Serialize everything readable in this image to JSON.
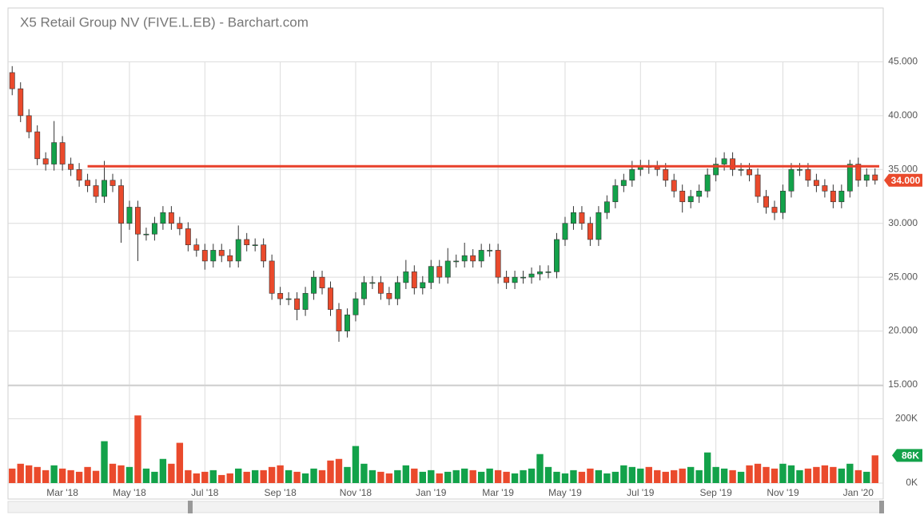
{
  "chart_data": {
    "type": "candlestick",
    "title": "X5 Retail Group NV (FIVE.L.EB) - Barchart.com",
    "categories": [
      null,
      null,
      null,
      null,
      null,
      null,
      "Mar '18",
      null,
      null,
      null,
      null,
      null,
      null,
      null,
      "May '18",
      null,
      null,
      null,
      null,
      null,
      null,
      null,
      null,
      "Jul '18",
      null,
      null,
      null,
      null,
      null,
      null,
      null,
      null,
      "Sep '18",
      null,
      null,
      null,
      null,
      null,
      null,
      null,
      null,
      "Nov '18",
      null,
      null,
      null,
      null,
      null,
      null,
      null,
      null,
      "Jan '19",
      null,
      null,
      null,
      null,
      null,
      null,
      null,
      "Mar '19",
      null,
      null,
      null,
      null,
      null,
      null,
      null,
      "May '19",
      null,
      null,
      null,
      null,
      null,
      null,
      null,
      null,
      "Jul '19",
      null,
      null,
      null,
      null,
      null,
      null,
      null,
      null,
      "Sep '19",
      null,
      null,
      null,
      null,
      null,
      null,
      null,
      "Nov '19",
      null,
      null,
      null,
      null,
      null,
      null,
      null,
      null,
      "Jan '20",
      null,
      null
    ],
    "open": [
      44,
      42.5,
      40,
      38.5,
      36,
      35.5,
      37.5,
      35.5,
      35,
      34,
      33.5,
      32.5,
      34,
      33.5,
      30,
      31.5,
      29,
      29,
      30,
      31,
      30,
      29.5,
      28,
      27.5,
      26.5,
      27.5,
      27,
      26.5,
      28.5,
      28,
      28,
      26.5,
      23.5,
      23,
      23,
      22,
      23.5,
      25,
      24,
      22,
      20,
      21.5,
      23,
      24.5,
      24.5,
      23.5,
      23,
      24.5,
      25.5,
      24,
      24.5,
      26,
      25,
      26.5,
      26.5,
      27,
      26.5,
      27.5,
      27.5,
      25,
      24.5,
      25,
      25,
      25.3,
      25.5,
      25.5,
      28.5,
      30,
      31,
      30,
      28.5,
      31,
      32,
      33.5,
      34,
      35,
      35.3,
      35.2,
      35,
      34,
      33,
      32,
      32.5,
      33,
      34.5,
      35.5,
      36,
      35,
      35,
      34.5,
      32.5,
      31.5,
      31,
      33,
      35,
      35,
      34,
      33.5,
      33,
      32,
      33,
      35.5,
      34,
      34.5
    ],
    "high": [
      44.6,
      43.1,
      40.6,
      39.1,
      36.6,
      39.5,
      38.1,
      36.1,
      35.6,
      34.6,
      34.1,
      35.8,
      34.6,
      34.1,
      32.1,
      32.1,
      29.6,
      30.6,
      31.6,
      31.6,
      30.6,
      30.1,
      28.6,
      28.1,
      28.1,
      28.1,
      27.6,
      29.8,
      29.1,
      28.6,
      28.6,
      27.1,
      24.1,
      23.6,
      23.6,
      24.1,
      25.6,
      25.6,
      24.6,
      22.6,
      22.1,
      23.6,
      25.1,
      25.1,
      25.1,
      24.1,
      25.1,
      26.6,
      26.1,
      25.1,
      26.6,
      26.6,
      27.7,
      27.1,
      28.2,
      27.6,
      28.1,
      28.1,
      28.1,
      25.6,
      25.6,
      25.6,
      25.9,
      26.1,
      26.1,
      29.1,
      30.6,
      31.6,
      31.6,
      30.6,
      31.6,
      32.6,
      34.1,
      34.6,
      35.8,
      35.9,
      35.9,
      35.8,
      35.6,
      34.6,
      33.6,
      33.1,
      33.6,
      35.1,
      36.1,
      36.6,
      36.6,
      35.6,
      35.6,
      35.1,
      33.1,
      32.1,
      33.6,
      35.6,
      35.6,
      35.6,
      34.6,
      34.1,
      33.6,
      33.6,
      35.9,
      36.1,
      35.1,
      35.1
    ],
    "low": [
      41.9,
      39.4,
      37.9,
      35.4,
      34.9,
      34.9,
      34.9,
      34.4,
      33.4,
      32.9,
      31.9,
      31.9,
      32.9,
      28.2,
      29.4,
      26.5,
      28.4,
      28.4,
      29.4,
      29.4,
      28.9,
      27.4,
      26.9,
      25.7,
      25.9,
      26.4,
      25.9,
      25.9,
      27.4,
      27.4,
      25.9,
      22.9,
      22.4,
      22.4,
      21,
      21.4,
      22.9,
      23.4,
      21.4,
      19,
      19.4,
      20.9,
      22.4,
      23.9,
      22.9,
      22.4,
      22.4,
      23.9,
      23.4,
      23.4,
      23.9,
      24.4,
      24.4,
      25.9,
      25.9,
      25.9,
      25.9,
      26.9,
      24.4,
      23.9,
      23.9,
      24.4,
      24.4,
      24.7,
      24.9,
      24.9,
      27.9,
      29.4,
      29.4,
      27.9,
      27.9,
      30.4,
      31.4,
      32.9,
      33.4,
      34.4,
      34.6,
      34.4,
      33.4,
      32.4,
      31,
      31.4,
      31.9,
      32.4,
      33.9,
      34.9,
      34.4,
      34.4,
      33.9,
      31.9,
      30.9,
      30.3,
      30.4,
      32.4,
      34.4,
      33.4,
      32.9,
      32.4,
      31.4,
      31.4,
      32.4,
      33.4,
      33.4,
      33.6
    ],
    "close": [
      42.5,
      40,
      38.5,
      36,
      35.5,
      37.5,
      35.5,
      35,
      34,
      33.5,
      32.5,
      34,
      33.5,
      30,
      31.5,
      29,
      29,
      30,
      31,
      30,
      29.5,
      28,
      27.5,
      26.5,
      27.5,
      27,
      26.5,
      28.5,
      28,
      28,
      26.5,
      23.5,
      23,
      23,
      22,
      23.5,
      25,
      24,
      22,
      20,
      21.5,
      23,
      24.5,
      24.5,
      23.5,
      23,
      24.5,
      25.5,
      24,
      24.5,
      26,
      25,
      26.5,
      26.5,
      27,
      26.5,
      27.5,
      27.5,
      25,
      24.5,
      25,
      25,
      25.3,
      25.5,
      25.5,
      28.5,
      30,
      31,
      30,
      28.5,
      31,
      32,
      33.5,
      34,
      35,
      35.3,
      35.2,
      35,
      34,
      33,
      32,
      32.5,
      33,
      34.5,
      35.5,
      36,
      35,
      35,
      34.5,
      32.5,
      31.5,
      31,
      33,
      35,
      35,
      34,
      33.5,
      33,
      32,
      33,
      35.5,
      34,
      34.5,
      34
    ],
    "volume": [
      45000,
      60000,
      55000,
      50000,
      40000,
      55000,
      45000,
      40000,
      35000,
      50000,
      38000,
      130000,
      60000,
      55000,
      50000,
      210000,
      45000,
      35000,
      75000,
      60000,
      125000,
      40000,
      30000,
      35000,
      40000,
      25000,
      30000,
      45000,
      35000,
      40000,
      40000,
      50000,
      55000,
      40000,
      35000,
      30000,
      45000,
      40000,
      70000,
      75000,
      50000,
      115000,
      60000,
      40000,
      35000,
      30000,
      40000,
      55000,
      45000,
      35000,
      40000,
      30000,
      35000,
      40000,
      45000,
      40000,
      35000,
      45000,
      40000,
      35000,
      30000,
      40000,
      45000,
      90000,
      50000,
      35000,
      30000,
      40000,
      35000,
      45000,
      40000,
      30000,
      35000,
      55000,
      50000,
      45000,
      50000,
      40000,
      35000,
      40000,
      45000,
      50000,
      40000,
      95000,
      50000,
      45000,
      40000,
      35000,
      55000,
      60000,
      50000,
      45000,
      60000,
      55000,
      40000,
      45000,
      50000,
      55000,
      50000,
      45000,
      60000,
      40000,
      35000,
      86000
    ],
    "ylim": [
      15,
      50
    ],
    "yticks": [
      {
        "value": 15,
        "label": "15.000"
      },
      {
        "value": 20,
        "label": "20.000"
      },
      {
        "value": 25,
        "label": "25.000"
      },
      {
        "value": 30,
        "label": "30.000"
      },
      {
        "value": 35,
        "label": "35.000"
      },
      {
        "value": 40,
        "label": "40.000"
      },
      {
        "value": 45,
        "label": "45.000"
      }
    ],
    "volume_ylim": [
      0,
      300000
    ],
    "volume_yticks": [
      {
        "value": 0,
        "label": "0K"
      },
      {
        "value": 200000,
        "label": "200K"
      }
    ],
    "up_color": "#13a24a",
    "down_color": "#ea4a2c",
    "grid": true,
    "resistance": {
      "value": 35.3,
      "start": 9,
      "color": "#e8402a"
    },
    "close_label": "34.000",
    "volume_label": "86K"
  }
}
